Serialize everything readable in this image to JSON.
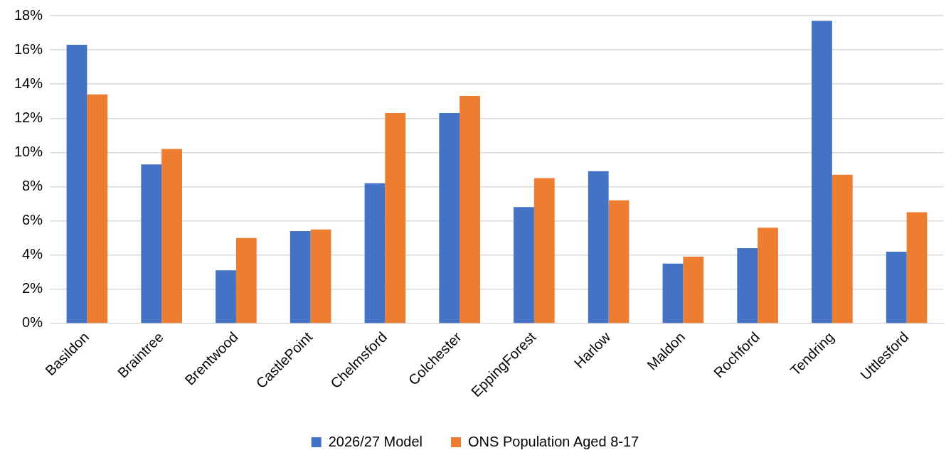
{
  "chart_data": {
    "type": "bar",
    "categories": [
      "Basildon",
      "Braintree",
      "Brentwood",
      "CastlePoint",
      "Chelmsford",
      "Colchester",
      "EppingForest",
      "Harlow",
      "Maldon",
      "Rochford",
      "Tendring",
      "Uttlesford"
    ],
    "series": [
      {
        "name": "2026/27 Model",
        "color": "#4472c4",
        "values": [
          16.3,
          9.3,
          3.1,
          5.4,
          8.2,
          12.3,
          6.8,
          8.9,
          3.5,
          4.4,
          17.7,
          4.2
        ]
      },
      {
        "name": "ONS Population Aged 8-17",
        "color": "#ed7d31",
        "values": [
          13.4,
          10.2,
          5.0,
          5.5,
          12.3,
          13.3,
          8.5,
          7.2,
          3.9,
          5.6,
          8.7,
          6.5
        ]
      }
    ],
    "ylim": [
      0,
      18
    ],
    "yticks": [
      {
        "value": 0,
        "label": "0%"
      },
      {
        "value": 2,
        "label": "2%"
      },
      {
        "value": 4,
        "label": "4%"
      },
      {
        "value": 6,
        "label": "6%"
      },
      {
        "value": 8,
        "label": "8%"
      },
      {
        "value": 10,
        "label": "10%"
      },
      {
        "value": 12,
        "label": "12%"
      },
      {
        "value": 14,
        "label": "14%"
      },
      {
        "value": 16,
        "label": "16%"
      },
      {
        "value": 18,
        "label": "18%"
      }
    ],
    "grid": "y",
    "legend": "bottom"
  }
}
